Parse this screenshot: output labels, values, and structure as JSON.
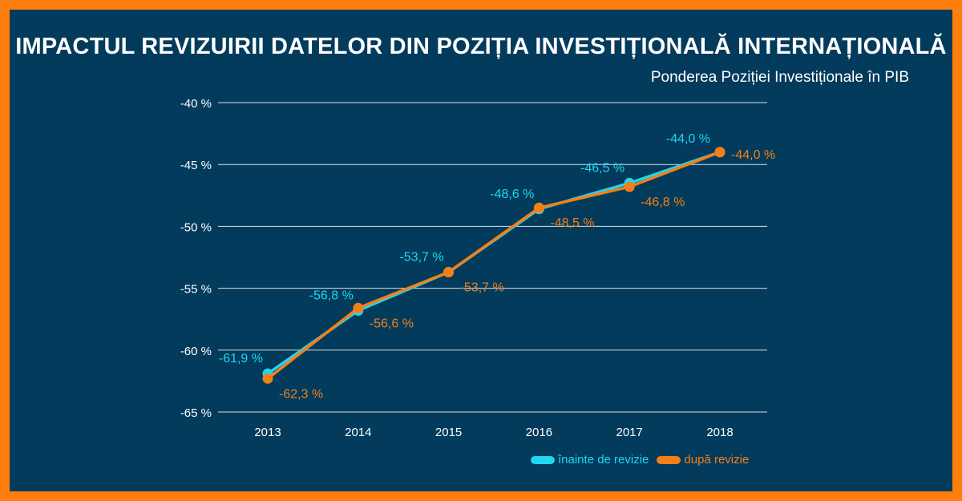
{
  "header": {
    "title": "IMPACTUL REVIZUIRII DATELOR DIN POZIȚIA INVESTIȚIONALĂ INTERNAȚIONALĂ",
    "subtitle": "Ponderea Poziției Investiționale în PIB"
  },
  "colors": {
    "background": "#023b5c",
    "border": "#ff7f0e",
    "before": "#1fd7f0",
    "after": "#f57f17",
    "gridline": "#ffffff",
    "text": "#ffffff"
  },
  "chart_data": {
    "type": "line",
    "categories": [
      "2013",
      "2014",
      "2015",
      "2016",
      "2017",
      "2018"
    ],
    "ylim": [
      -65,
      -40
    ],
    "yticks": [
      -40,
      -45,
      -50,
      -55,
      -60,
      -65
    ],
    "ytick_labels": [
      "-40 %",
      "-45 %",
      "-50 %",
      "-55 %",
      "-60 %",
      "-65 %"
    ],
    "grid": true,
    "legend_position": "bottom-right",
    "series": [
      {
        "name": "înainte de revizie",
        "color": "#1fd7f0",
        "values": [
          -61.9,
          -56.8,
          -53.7,
          -48.6,
          -46.5,
          -44.0
        ],
        "labels": [
          "-61,9 %",
          "-56,8 %",
          "-53,7 %",
          "-48,6 %",
          "-46,5 %",
          "-44,0 %"
        ]
      },
      {
        "name": "după revizie",
        "color": "#f57f17",
        "values": [
          -62.3,
          -56.6,
          -53.7,
          -48.5,
          -46.8,
          -44.0
        ],
        "labels": [
          "-62,3 %",
          "-56,6 %",
          "-53,7 %",
          "-48,5 %",
          "-46,8 %",
          "-44,0 %"
        ]
      }
    ]
  }
}
